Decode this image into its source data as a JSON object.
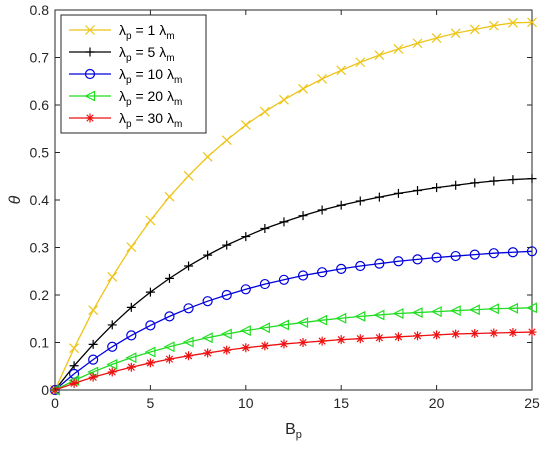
{
  "chart_data": {
    "type": "line",
    "title": "",
    "xlabel": "B",
    "xlabel_sub": "p",
    "ylabel": "θ",
    "xlim": [
      0,
      25
    ],
    "ylim": [
      0,
      0.8
    ],
    "xticks": [
      "0",
      "5",
      "10",
      "15",
      "20",
      "25"
    ],
    "yticks": [
      "0",
      "0.1",
      "0.2",
      "0.3",
      "0.4",
      "0.5",
      "0.6",
      "0.7",
      "0.8"
    ],
    "grid": false,
    "legend_position": "top-left",
    "x": [
      0,
      1,
      2,
      3,
      4,
      5,
      6,
      7,
      8,
      9,
      10,
      11,
      12,
      13,
      14,
      15,
      16,
      17,
      18,
      19,
      20,
      21,
      22,
      23,
      24,
      25
    ],
    "series": [
      {
        "name": "λ_p = 1 λ_m",
        "label_parts": [
          "λ",
          "p",
          " = 1 ",
          "λ",
          "m"
        ],
        "color": "#EDC418",
        "marker": "x",
        "values": [
          0,
          0.088,
          0.168,
          0.238,
          0.301,
          0.357,
          0.407,
          0.451,
          0.491,
          0.526,
          0.558,
          0.586,
          0.611,
          0.634,
          0.655,
          0.673,
          0.69,
          0.705,
          0.718,
          0.73,
          0.741,
          0.751,
          0.759,
          0.767,
          0.773,
          0.774
        ]
      },
      {
        "name": "λ_p = 5 λ_m",
        "label_parts": [
          "λ",
          "p",
          " = 5 ",
          "λ",
          "m"
        ],
        "color": "#000000",
        "marker": "plus",
        "values": [
          0,
          0.051,
          0.096,
          0.137,
          0.174,
          0.206,
          0.235,
          0.261,
          0.284,
          0.305,
          0.323,
          0.34,
          0.354,
          0.367,
          0.379,
          0.389,
          0.398,
          0.406,
          0.414,
          0.42,
          0.426,
          0.431,
          0.436,
          0.44,
          0.443,
          0.445
        ]
      },
      {
        "name": "λ_p = 10 λ_m",
        "label_parts": [
          "λ",
          "p",
          " = 10 ",
          "λ",
          "m"
        ],
        "color": "#0000DD",
        "marker": "circle",
        "values": [
          0,
          0.034,
          0.064,
          0.091,
          0.115,
          0.136,
          0.155,
          0.172,
          0.187,
          0.2,
          0.212,
          0.223,
          0.232,
          0.241,
          0.248,
          0.255,
          0.261,
          0.266,
          0.271,
          0.275,
          0.279,
          0.282,
          0.285,
          0.288,
          0.29,
          0.292
        ]
      },
      {
        "name": "λ_p = 20 λ_m",
        "label_parts": [
          "λ",
          "p",
          " = 20 ",
          "λ",
          "m"
        ],
        "color": "#22DD22",
        "marker": "triangle-left",
        "values": [
          0,
          0.02,
          0.038,
          0.054,
          0.068,
          0.08,
          0.091,
          0.101,
          0.11,
          0.118,
          0.125,
          0.131,
          0.137,
          0.142,
          0.147,
          0.151,
          0.155,
          0.158,
          0.161,
          0.163,
          0.165,
          0.167,
          0.169,
          0.171,
          0.172,
          0.173
        ]
      },
      {
        "name": "λ_p = 30 λ_m",
        "label_parts": [
          "λ",
          "p",
          " = 30 ",
          "λ",
          "m"
        ],
        "color": "#EE1111",
        "marker": "asterisk",
        "values": [
          0,
          0.014,
          0.027,
          0.038,
          0.048,
          0.057,
          0.065,
          0.072,
          0.078,
          0.084,
          0.089,
          0.093,
          0.097,
          0.1,
          0.103,
          0.106,
          0.108,
          0.11,
          0.112,
          0.114,
          0.116,
          0.118,
          0.119,
          0.12,
          0.121,
          0.122
        ]
      }
    ]
  }
}
